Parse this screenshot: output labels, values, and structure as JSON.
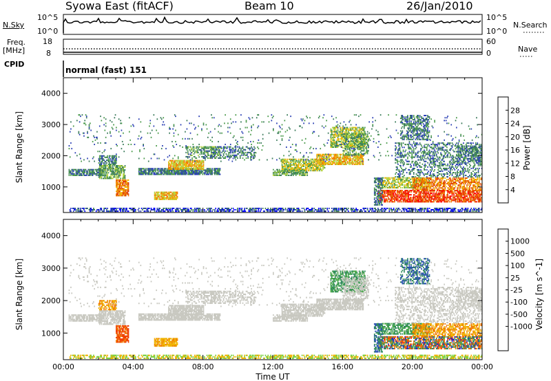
{
  "header": {
    "title": "Syowa East (fitACF)",
    "beam": "Beam 10",
    "date": "26/Jan/2010"
  },
  "panels": {
    "nsky_label": "N.Sky",
    "nsearch_label": "N.Search",
    "freq_label_1": "Freq.",
    "freq_label_2": "[MHz]",
    "nave_label": "Nave",
    "cpid_label": "CPID",
    "cpid_value": "normal (fast) 151",
    "nsky_ticks": [
      "10^5",
      "10^0"
    ],
    "nsearch_ticks": [
      "10^5",
      "10^0"
    ],
    "freq_ticks": [
      "18",
      "8"
    ],
    "nave_ticks": [
      "60",
      "0"
    ]
  },
  "colors": {
    "power": [
      "#0000ff",
      "#2a3fb4",
      "#3a7a5a",
      "#4a9a4a",
      "#b4d23c",
      "#f0b400",
      "#f07800",
      "#e03c00",
      "#ff0000"
    ],
    "velocity": [
      "#2020d0",
      "#2850b0",
      "#2e8a5a",
      "#4aa84a",
      "#78d03c",
      "#c8c8c0",
      "#f0b400",
      "#f07800",
      "#f03c00",
      "#ff0000"
    ]
  },
  "chart_data": [
    {
      "type": "heatmap",
      "quantity": "power",
      "ylabel": "Slant Range [km]",
      "yticks": [
        1000,
        2000,
        3000,
        4000
      ],
      "ylim": [
        180,
        4500
      ],
      "xlim": [
        0,
        24
      ],
      "colorbar_label": "Power [dB]",
      "colorbar_ticks": [
        "4",
        "8",
        "12",
        "16",
        "20",
        "24",
        "28"
      ],
      "colorbar_range": [
        0,
        32
      ]
    },
    {
      "type": "heatmap",
      "quantity": "velocity",
      "ylabel": "Slant Range [km]",
      "yticks": [
        1000,
        2000,
        3000,
        4000
      ],
      "ylim": [
        180,
        4500
      ],
      "xlim": [
        0,
        24
      ],
      "xlabel": "Time UT",
      "xticks": [
        "00:00",
        "04:00",
        "08:00",
        "12:00",
        "16:00",
        "20:00",
        "00:00"
      ],
      "colorbar_label": "Velocity [m s^-1]",
      "colorbar_ticks": [
        "1000",
        "500",
        "100",
        "25",
        "-25",
        "-100",
        "-500",
        "-1000"
      ]
    }
  ]
}
